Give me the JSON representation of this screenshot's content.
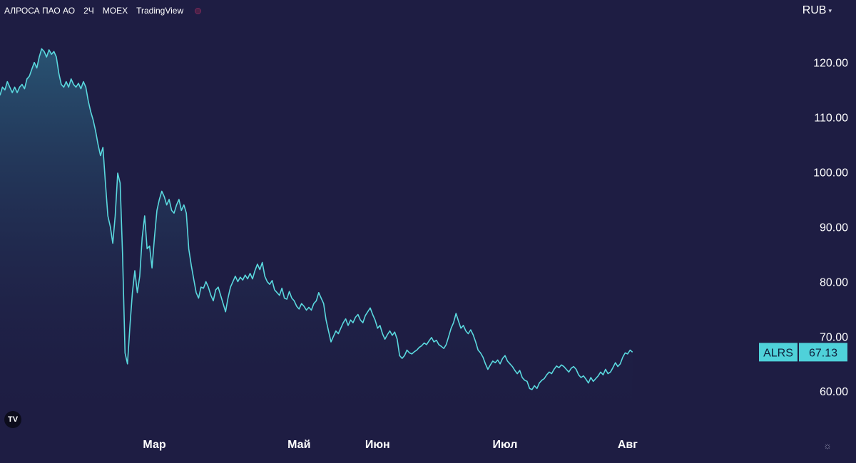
{
  "header": {
    "symbol_name": "АЛРОСА ПАО АО",
    "interval": "2Ч",
    "exchange": "MOEX",
    "provider": "TradingView",
    "status_icon": "dot-icon",
    "currency": "RUB"
  },
  "colors": {
    "background": "#1e1d43",
    "line": "#5ad8de",
    "label_bg": "#4fd1d9",
    "label_text": "#0e1e3a",
    "area_top": "#2a5c7a",
    "axis_text": "#ffffff"
  },
  "chart_data": {
    "type": "area",
    "ticker": "ALRS",
    "last_value": "67.13",
    "y_ticks": [
      "120.00",
      "110.00",
      "100.00",
      "90.00",
      "80.00",
      "70.00",
      "60.00"
    ],
    "y_tick_values": [
      120,
      110,
      100,
      90,
      80,
      70,
      60
    ],
    "ylim": [
      53.4,
      131.4
    ],
    "x_ticks": [
      "Мар",
      "Май",
      "Июн",
      "Июл",
      "Авг"
    ],
    "x_tick_values": [
      46,
      105,
      137,
      189,
      239
    ],
    "xlim": [
      -17,
      292
    ],
    "points": [
      [
        -17,
        114
      ],
      [
        -16,
        115.5
      ],
      [
        -15,
        115
      ],
      [
        -14,
        116.5
      ],
      [
        -13,
        115.5
      ],
      [
        -12,
        114.5
      ],
      [
        -11,
        115.5
      ],
      [
        -10,
        114.5
      ],
      [
        -9,
        115.5
      ],
      [
        -8,
        116
      ],
      [
        -7,
        115.2
      ],
      [
        -6,
        117
      ],
      [
        -5,
        117.5
      ],
      [
        -4,
        118.8
      ],
      [
        -3,
        120
      ],
      [
        -2,
        119
      ],
      [
        -1,
        121
      ],
      [
        0,
        122.5
      ],
      [
        1,
        122
      ],
      [
        2,
        121
      ],
      [
        3,
        122.3
      ],
      [
        4,
        121.5
      ],
      [
        5,
        122
      ],
      [
        6,
        121
      ],
      [
        7,
        118
      ],
      [
        8,
        116
      ],
      [
        9,
        115.5
      ],
      [
        10,
        116.5
      ],
      [
        11,
        115.5
      ],
      [
        12,
        117
      ],
      [
        13,
        116
      ],
      [
        14,
        115.5
      ],
      [
        15,
        116.2
      ],
      [
        16,
        115.2
      ],
      [
        17,
        116.5
      ],
      [
        18,
        115.5
      ],
      [
        19,
        113
      ],
      [
        20,
        111
      ],
      [
        21,
        109.5
      ],
      [
        22,
        107.5
      ],
      [
        23,
        105
      ],
      [
        24,
        103
      ],
      [
        25,
        104.5
      ],
      [
        26,
        98
      ],
      [
        27,
        92
      ],
      [
        28,
        90
      ],
      [
        29,
        87
      ],
      [
        30,
        92
      ],
      [
        31,
        99.8
      ],
      [
        32,
        98
      ],
      [
        33,
        85
      ],
      [
        34,
        67
      ],
      [
        35,
        65
      ],
      [
        36,
        72
      ],
      [
        37,
        78
      ],
      [
        38,
        82
      ],
      [
        39,
        78
      ],
      [
        40,
        81
      ],
      [
        41,
        88
      ],
      [
        42,
        92
      ],
      [
        43,
        86
      ],
      [
        44,
        86.5
      ],
      [
        45,
        82.5
      ],
      [
        46,
        88
      ],
      [
        47,
        93
      ],
      [
        48,
        95
      ],
      [
        49,
        96.5
      ],
      [
        50,
        95.5
      ],
      [
        51,
        94
      ],
      [
        52,
        95
      ],
      [
        53,
        93
      ],
      [
        54,
        92.5
      ],
      [
        55,
        94
      ],
      [
        56,
        95
      ],
      [
        57,
        93
      ],
      [
        58,
        94
      ],
      [
        59,
        92.5
      ],
      [
        60,
        86
      ],
      [
        61,
        83
      ],
      [
        62,
        80.5
      ],
      [
        63,
        78
      ],
      [
        64,
        77
      ],
      [
        65,
        79
      ],
      [
        66,
        78.8
      ],
      [
        67,
        80
      ],
      [
        68,
        79
      ],
      [
        69,
        77.5
      ],
      [
        70,
        76.5
      ],
      [
        71,
        78.5
      ],
      [
        72,
        79
      ],
      [
        73,
        77.5
      ],
      [
        74,
        76
      ],
      [
        75,
        74.5
      ],
      [
        76,
        77
      ],
      [
        77,
        79
      ],
      [
        78,
        80
      ],
      [
        79,
        81
      ],
      [
        80,
        80
      ],
      [
        81,
        80.8
      ],
      [
        82,
        80.3
      ],
      [
        83,
        81.2
      ],
      [
        84,
        80.5
      ],
      [
        85,
        81.5
      ],
      [
        86,
        80.5
      ],
      [
        87,
        82
      ],
      [
        88,
        83.2
      ],
      [
        89,
        82.2
      ],
      [
        90,
        83.5
      ],
      [
        91,
        81
      ],
      [
        92,
        80
      ],
      [
        93,
        79.5
      ],
      [
        94,
        80.2
      ],
      [
        95,
        78.5
      ],
      [
        96,
        78
      ],
      [
        97,
        77.5
      ],
      [
        98,
        78.8
      ],
      [
        99,
        77
      ],
      [
        100,
        76.8
      ],
      [
        101,
        78.2
      ],
      [
        102,
        77
      ],
      [
        103,
        76.5
      ],
      [
        104,
        75.5
      ],
      [
        105,
        75
      ],
      [
        106,
        76
      ],
      [
        107,
        75.5
      ],
      [
        108,
        74.8
      ],
      [
        109,
        75.3
      ],
      [
        110,
        74.8
      ],
      [
        111,
        76
      ],
      [
        112,
        76.5
      ],
      [
        113,
        78
      ],
      [
        114,
        77
      ],
      [
        115,
        76
      ],
      [
        116,
        73
      ],
      [
        117,
        71
      ],
      [
        118,
        69
      ],
      [
        119,
        70
      ],
      [
        120,
        71
      ],
      [
        121,
        70.5
      ],
      [
        122,
        71.5
      ],
      [
        123,
        72.5
      ],
      [
        124,
        73.2
      ],
      [
        125,
        72
      ],
      [
        126,
        73
      ],
      [
        127,
        72.5
      ],
      [
        128,
        73.5
      ],
      [
        129,
        74
      ],
      [
        130,
        73
      ],
      [
        131,
        72.5
      ],
      [
        132,
        73.8
      ],
      [
        133,
        74.5
      ],
      [
        134,
        75.2
      ],
      [
        135,
        74
      ],
      [
        136,
        73
      ],
      [
        137,
        71.5
      ],
      [
        138,
        72
      ],
      [
        139,
        70.5
      ],
      [
        140,
        69.5
      ],
      [
        141,
        70.3
      ],
      [
        142,
        71
      ],
      [
        143,
        70.2
      ],
      [
        144,
        70.8
      ],
      [
        145,
        69.5
      ],
      [
        146,
        66.5
      ],
      [
        147,
        66
      ],
      [
        148,
        66.5
      ],
      [
        149,
        67.5
      ],
      [
        150,
        67
      ],
      [
        151,
        66.8
      ],
      [
        152,
        67.2
      ],
      [
        153,
        67.5
      ],
      [
        154,
        68
      ],
      [
        155,
        68.3
      ],
      [
        156,
        68.8
      ],
      [
        157,
        68.5
      ],
      [
        158,
        69.2
      ],
      [
        159,
        69.8
      ],
      [
        160,
        69
      ],
      [
        161,
        69.3
      ],
      [
        162,
        68.5
      ],
      [
        163,
        68.2
      ],
      [
        164,
        67.8
      ],
      [
        165,
        68.5
      ],
      [
        166,
        70
      ],
      [
        167,
        71.5
      ],
      [
        168,
        72.5
      ],
      [
        169,
        74.2
      ],
      [
        170,
        72.8
      ],
      [
        171,
        71.5
      ],
      [
        172,
        72
      ],
      [
        173,
        71
      ],
      [
        174,
        70.5
      ],
      [
        175,
        71.2
      ],
      [
        176,
        70.3
      ],
      [
        177,
        69
      ],
      [
        178,
        67.5
      ],
      [
        179,
        67
      ],
      [
        180,
        66.2
      ],
      [
        181,
        65
      ],
      [
        182,
        64
      ],
      [
        183,
        64.8
      ],
      [
        184,
        65.5
      ],
      [
        185,
        65.2
      ],
      [
        186,
        65.7
      ],
      [
        187,
        65
      ],
      [
        188,
        66
      ],
      [
        189,
        66.5
      ],
      [
        190,
        65.5
      ],
      [
        191,
        65
      ],
      [
        192,
        64.5
      ],
      [
        193,
        63.8
      ],
      [
        194,
        63.2
      ],
      [
        195,
        63.8
      ],
      [
        196,
        62.5
      ],
      [
        197,
        62
      ],
      [
        198,
        61.8
      ],
      [
        199,
        60.5
      ],
      [
        200,
        60.3
      ],
      [
        201,
        61
      ],
      [
        202,
        60.5
      ],
      [
        203,
        61.5
      ],
      [
        204,
        62
      ],
      [
        205,
        62.3
      ],
      [
        206,
        63
      ],
      [
        207,
        63.5
      ],
      [
        208,
        63.2
      ],
      [
        209,
        64
      ],
      [
        210,
        64.6
      ],
      [
        211,
        64.3
      ],
      [
        212,
        64.8
      ],
      [
        213,
        64.5
      ],
      [
        214,
        64
      ],
      [
        215,
        63.5
      ],
      [
        216,
        64.2
      ],
      [
        217,
        64.5
      ],
      [
        218,
        64
      ],
      [
        219,
        63
      ],
      [
        220,
        62.5
      ],
      [
        221,
        62.8
      ],
      [
        222,
        62.2
      ],
      [
        223,
        61.5
      ],
      [
        224,
        62.5
      ],
      [
        225,
        61.8
      ],
      [
        226,
        62.3
      ],
      [
        227,
        62.8
      ],
      [
        228,
        63.5
      ],
      [
        229,
        63
      ],
      [
        230,
        64
      ],
      [
        231,
        63.2
      ],
      [
        232,
        63.5
      ],
      [
        233,
        64.3
      ],
      [
        234,
        65.2
      ],
      [
        235,
        64.5
      ],
      [
        236,
        65
      ],
      [
        237,
        66.2
      ],
      [
        238,
        67
      ],
      [
        239,
        66.8
      ],
      [
        240,
        67.5
      ],
      [
        241,
        67.13
      ]
    ]
  }
}
